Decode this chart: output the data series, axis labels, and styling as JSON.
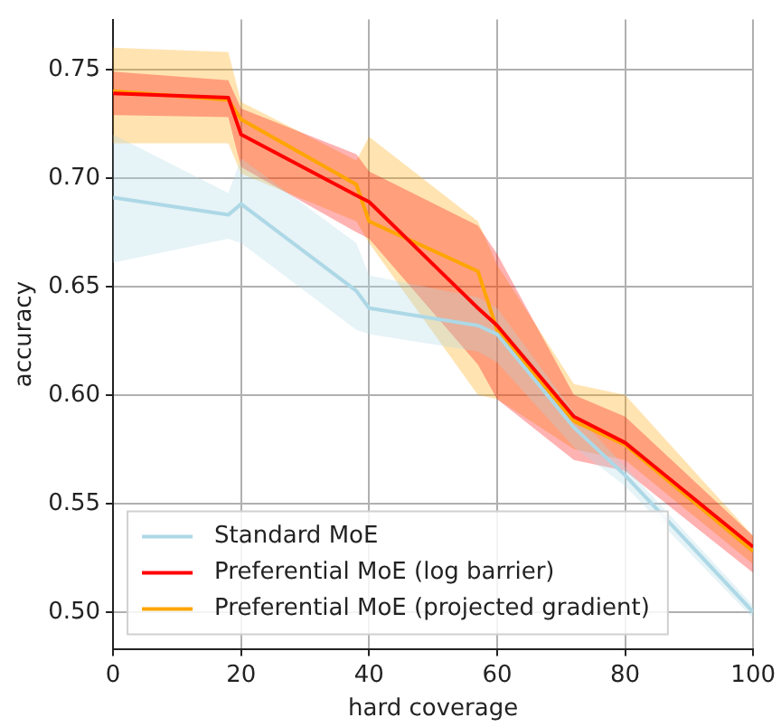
{
  "chart_data": {
    "type": "line",
    "xlabel": "hard coverage",
    "ylabel": "accuracy",
    "xlim": [
      0,
      100
    ],
    "xticks": [
      0,
      20,
      40,
      60,
      80,
      100
    ],
    "ylim": [
      0.483,
      0.773
    ],
    "yticks": [
      {
        "value": 0.5,
        "label": "0.50"
      },
      {
        "value": 0.55,
        "label": "0.55"
      },
      {
        "value": 0.6,
        "label": "0.60"
      },
      {
        "value": 0.65,
        "label": "0.65"
      },
      {
        "value": 0.7,
        "label": "0.70"
      },
      {
        "value": 0.75,
        "label": "0.75"
      }
    ],
    "grid": true,
    "legend": "bottom left",
    "marker": "none",
    "x": [
      0,
      18,
      20,
      38,
      40,
      57,
      60,
      72,
      80,
      100
    ],
    "series": [
      {
        "name": "Standard MoE",
        "color": "#add8e6",
        "values": [
          0.691,
          0.683,
          0.688,
          0.648,
          0.64,
          0.632,
          0.628,
          0.585,
          0.563,
          0.5
        ],
        "lower": [
          0.661,
          0.672,
          0.67,
          0.63,
          0.628,
          0.62,
          0.615,
          0.576,
          0.558,
          0.497
        ],
        "upper": [
          0.72,
          0.693,
          0.709,
          0.67,
          0.655,
          0.645,
          0.64,
          0.592,
          0.567,
          0.503
        ]
      },
      {
        "name": "Preferential MoE (log barrier)",
        "color": "#ff0000",
        "values": [
          0.739,
          0.737,
          0.72,
          0.692,
          0.689,
          0.64,
          0.632,
          0.59,
          0.578,
          0.53
        ],
        "lower": [
          0.729,
          0.728,
          0.705,
          0.675,
          0.672,
          0.614,
          0.598,
          0.57,
          0.565,
          0.518
        ],
        "upper": [
          0.749,
          0.745,
          0.732,
          0.711,
          0.703,
          0.678,
          0.665,
          0.6,
          0.59,
          0.535
        ]
      },
      {
        "name": "Preferential MoE (projected gradient)",
        "color": "#ffa500",
        "values": [
          0.74,
          0.736,
          0.727,
          0.697,
          0.68,
          0.657,
          0.63,
          0.588,
          0.577,
          0.528
        ],
        "lower": [
          0.716,
          0.716,
          0.702,
          0.68,
          0.67,
          0.6,
          0.598,
          0.575,
          0.57,
          0.522
        ],
        "upper": [
          0.76,
          0.758,
          0.735,
          0.708,
          0.719,
          0.68,
          0.66,
          0.605,
          0.6,
          0.535
        ]
      }
    ]
  }
}
